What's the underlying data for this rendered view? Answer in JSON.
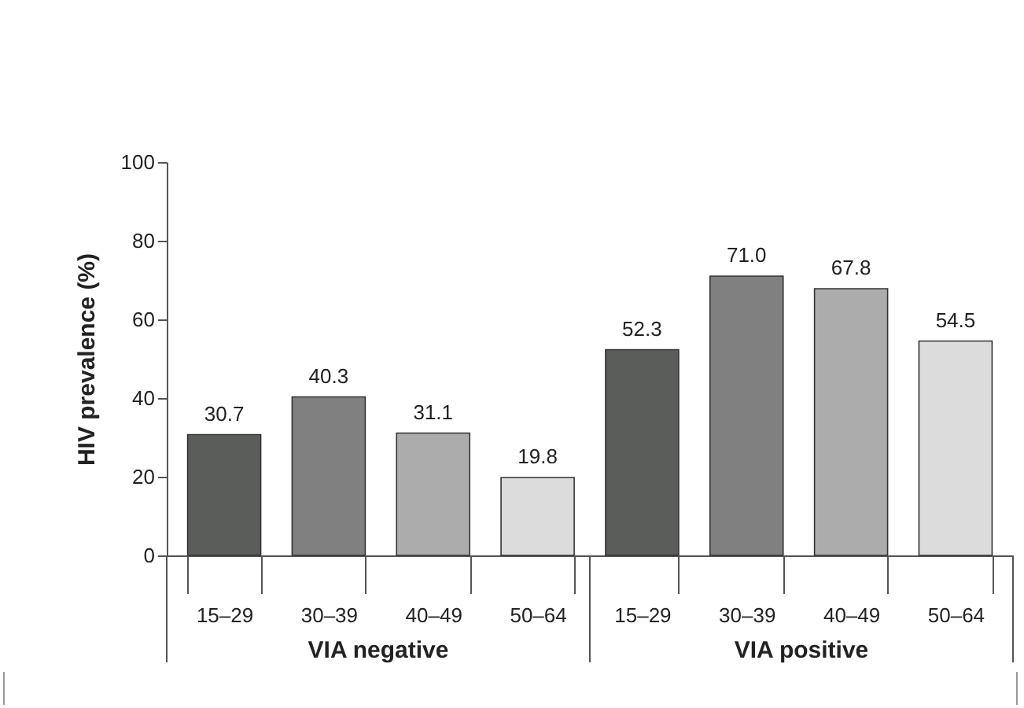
{
  "chart_data": {
    "type": "bar",
    "ylabel": "HIV prevalence (%)",
    "categories": [
      "15–29",
      "30–39",
      "40–49",
      "50–64",
      "15–29",
      "30–39",
      "40–49",
      "50–64"
    ],
    "values": [
      30.7,
      40.3,
      31.1,
      19.8,
      52.3,
      71.0,
      67.8,
      54.5
    ],
    "value_labels": [
      "30.7",
      "40.3",
      "31.1",
      "19.8",
      "52.3",
      "71.0",
      "67.8",
      "54.5"
    ],
    "colors": [
      "#5b5d5b",
      "#808080",
      "#acacac",
      "#dcdcdc",
      "#5b5d5b",
      "#808080",
      "#acacac",
      "#dcdcdc"
    ],
    "annotations": [
      "VIA negative",
      "VIA positive"
    ],
    "ylim": [
      0,
      100
    ],
    "yticks": [
      0,
      20,
      40,
      60,
      80,
      100
    ],
    "grid": false
  }
}
